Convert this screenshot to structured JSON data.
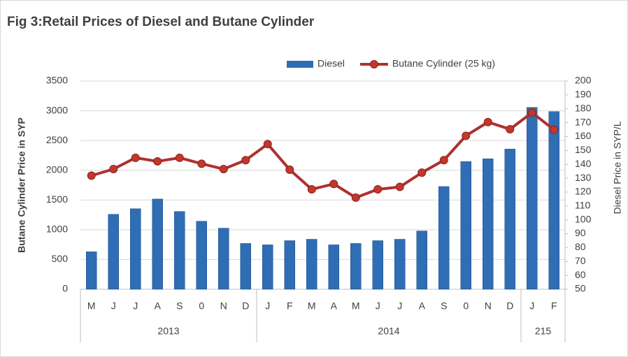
{
  "chart_data": {
    "type": "bar-line",
    "title": "Fig 3:Retail Prices of Diesel and Butane Cylinder",
    "y_label": "Butane Cylinder Price  in SYP",
    "y2_label": "Diesel Price in SYP/L",
    "categories": [
      "M",
      "J",
      "J",
      "A",
      "S",
      "0",
      "N",
      "D",
      "J",
      "F",
      "M",
      "A",
      "M",
      "J",
      "J",
      "A",
      "S",
      "0",
      "N",
      "D",
      "J",
      "F"
    ],
    "groups": [
      {
        "label": "2013",
        "span": 8
      },
      {
        "label": "2014",
        "span": 12
      },
      {
        "label": "215",
        "span": 2
      }
    ],
    "series": [
      {
        "name": "Diesel",
        "type": "bar",
        "axis": "y2",
        "color": "#2f6db5",
        "values": [
          77,
          104,
          108,
          115,
          106,
          99,
          94,
          83,
          82,
          85,
          86,
          82,
          83,
          85,
          86,
          92,
          124,
          142,
          144,
          151,
          181,
          178
        ]
      },
      {
        "name": "Butane Cylinder (25 kg)",
        "type": "line",
        "axis": "y",
        "color": "#b03030",
        "values": [
          1910,
          2020,
          2210,
          2150,
          2210,
          2110,
          2020,
          2170,
          2440,
          2010,
          1680,
          1770,
          1540,
          1680,
          1720,
          1960,
          2170,
          2580,
          2810,
          2690,
          2970,
          2680
        ]
      }
    ],
    "ylim": [
      0,
      3500
    ],
    "yticks": [
      0,
      500,
      1000,
      1500,
      2000,
      2500,
      3000,
      3500
    ],
    "y2lim": [
      50,
      200
    ],
    "y2ticks": [
      50,
      60,
      70,
      80,
      90,
      100,
      110,
      120,
      130,
      140,
      150,
      160,
      170,
      180,
      190,
      200
    ],
    "grid": true,
    "legend": "top"
  }
}
